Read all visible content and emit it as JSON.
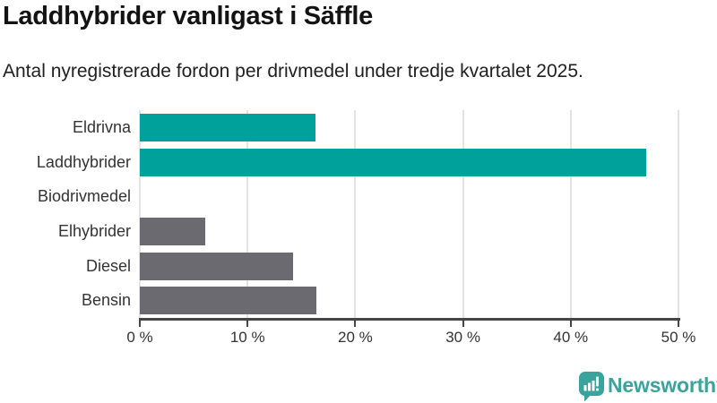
{
  "header": {
    "title": "Laddhybrider vanligast i Säffle",
    "subtitle": "Antal nyregistrerade fordon per drivmedel under tredje kvartalet 2025."
  },
  "chart_data": {
    "type": "bar",
    "orientation": "horizontal",
    "title": "Laddhybrider vanligast i Säffle",
    "subtitle": "Antal nyregistrerade fordon per drivmedel under tredje kvartalet 2025.",
    "categories": [
      "Eldrivna",
      "Laddhybrider",
      "Biodrivmedel",
      "Elhybrider",
      "Diesel",
      "Bensin"
    ],
    "values": [
      16.3,
      47.0,
      0,
      6.1,
      14.2,
      16.4
    ],
    "unit": "%",
    "xlabel": "",
    "ylabel": "",
    "xlim": [
      0,
      50
    ],
    "x_ticks": [
      "0 %",
      "10 %",
      "20 %",
      "30 %",
      "40 %",
      "50 %"
    ],
    "grid": true,
    "legend": "none",
    "bar_colors": [
      "#00a09b",
      "#00a09b",
      "#6a6a70",
      "#6a6a70",
      "#6a6a70",
      "#6a6a70"
    ]
  },
  "style": {
    "bar_teal": "#00a09b",
    "bar_gray": "#6a6a70",
    "grid_color": "#e3e3e3",
    "axis_color": "#454545",
    "text_dark": "#131313",
    "text_label": "#333333",
    "brand_teal": "#3aa39c"
  },
  "footer": {
    "brand": "Newsworthy"
  }
}
